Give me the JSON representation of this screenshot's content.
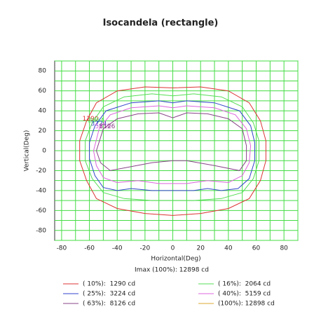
{
  "chart_data": {
    "type": "contour",
    "title": "Isocandela (rectangle)",
    "x_label": "Horizontal(Deg)",
    "y_label": "Vertical(Deg)",
    "note": "Imax (100%): 12898 cd",
    "xlim": [
      -85,
      90
    ],
    "ylim": [
      -90,
      90
    ],
    "xticks": [
      -80,
      -60,
      -40,
      -20,
      0,
      20,
      40,
      60,
      80
    ],
    "yticks": [
      -80,
      -60,
      -40,
      -20,
      0,
      20,
      40,
      60,
      80
    ],
    "minor_xticks": [
      -70,
      -50,
      -30,
      -10,
      10,
      30,
      50,
      70,
      90
    ],
    "minor_yticks": [
      -90,
      -70,
      -50,
      -30,
      -10,
      10,
      30,
      50,
      70,
      90
    ],
    "grid": true,
    "grid_color": "#44dd44",
    "series": [
      {
        "name": "( 10%):  1290 cd",
        "label": "1290",
        "color": "#dd3333",
        "x": [
          -62,
          -55,
          -40,
          -20,
          0,
          20,
          40,
          55,
          63,
          67,
          67,
          63,
          55,
          40,
          20,
          0,
          -20,
          -40,
          -55,
          -62,
          -67,
          -67,
          -62
        ],
        "y": [
          30,
          48,
          60,
          64,
          63,
          64,
          60,
          48,
          30,
          10,
          -10,
          -30,
          -48,
          -58,
          -63,
          -65,
          -63,
          -58,
          -48,
          -30,
          -10,
          10,
          30
        ]
      },
      {
        "name": "( 16%):  2064 cd",
        "label": "2064",
        "color": "#55dd55",
        "x": [
          -58,
          -50,
          -35,
          -15,
          0,
          15,
          35,
          50,
          58,
          62,
          62,
          58,
          50,
          35,
          15,
          0,
          -15,
          -35,
          -50,
          -58,
          -63,
          -63,
          -58
        ],
        "y": [
          28,
          44,
          54,
          57,
          55,
          57,
          54,
          44,
          28,
          10,
          -10,
          -28,
          -42,
          -48,
          -50,
          -50,
          -50,
          -48,
          -42,
          -28,
          -10,
          10,
          28
        ]
      },
      {
        "name": "( 25%):  3224 cd",
        "label": "3224",
        "color": "#3344cc",
        "x": [
          -56,
          -48,
          -30,
          -10,
          0,
          10,
          30,
          48,
          56,
          59,
          59,
          55,
          47,
          35,
          25,
          15,
          0,
          -15,
          -30,
          -40,
          -50,
          -56,
          -60,
          -60,
          -56
        ],
        "y": [
          25,
          40,
          48,
          50,
          48,
          50,
          48,
          40,
          25,
          8,
          -10,
          -28,
          -38,
          -40,
          -38,
          -40,
          -40,
          -40,
          -38,
          -40,
          -37,
          -25,
          -8,
          8,
          25
        ]
      },
      {
        "name": "( 40%):  5159 cd",
        "label": "5159",
        "color": "#dd66dd",
        "x": [
          -53,
          -45,
          -30,
          -10,
          0,
          10,
          30,
          45,
          53,
          56,
          55,
          50,
          40,
          25,
          10,
          -10,
          -25,
          -40,
          -50,
          -55,
          -57,
          -53
        ],
        "y": [
          22,
          36,
          43,
          45,
          43,
          45,
          43,
          36,
          22,
          5,
          -12,
          -25,
          -32,
          -30,
          -33,
          -33,
          -30,
          -32,
          -27,
          -15,
          0,
          22
        ]
      },
      {
        "name": "( 63%):  8126 cd",
        "label": "8126",
        "color": "#884488",
        "x": [
          -50,
          -40,
          -25,
          -10,
          0,
          10,
          25,
          40,
          50,
          53,
          53,
          48,
          30,
          10,
          0,
          -15,
          -30,
          -45,
          -52,
          -55,
          -50
        ],
        "y": [
          22,
          32,
          37,
          38,
          33,
          38,
          37,
          32,
          22,
          5,
          -10,
          -20,
          -15,
          -10,
          -10,
          -12,
          -16,
          -20,
          -12,
          0,
          22
        ]
      },
      {
        "name": "(100%): 12898 cd",
        "color": "#ddaa33",
        "x": [],
        "y": []
      }
    ]
  }
}
